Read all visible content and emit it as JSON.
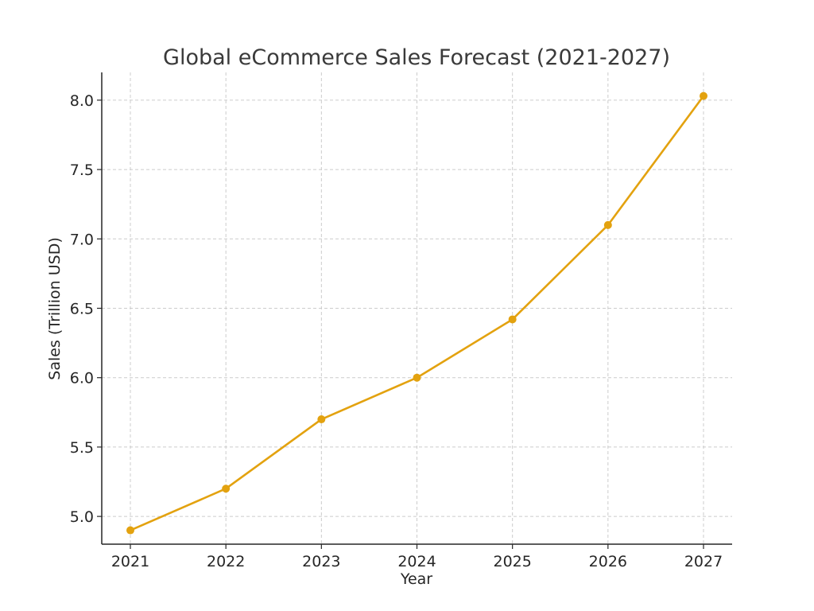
{
  "chart_data": {
    "type": "line",
    "title": "Global eCommerce Sales Forecast (2021-2027)",
    "xlabel": "Year",
    "ylabel": "Sales (Trillion USD)",
    "x": [
      "2021",
      "2022",
      "2023",
      "2024",
      "2025",
      "2026",
      "2027"
    ],
    "series": [
      {
        "values": [
          4.9,
          5.2,
          5.7,
          6.0,
          6.42,
          7.1,
          8.03
        ],
        "color": "#e3a20f"
      }
    ],
    "ylim": [
      4.8,
      8.2
    ],
    "yticks": [
      "5.0",
      "5.5",
      "6.0",
      "6.5",
      "7.0",
      "7.5",
      "8.0"
    ],
    "grid": true,
    "legend": "none"
  }
}
